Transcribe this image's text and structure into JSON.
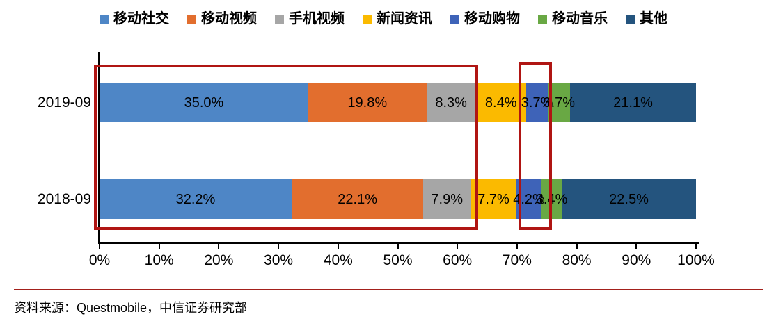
{
  "legend": {
    "items": [
      {
        "label": "移动社交",
        "color": "#4E86C6"
      },
      {
        "label": "移动视频",
        "color": "#E26E2E"
      },
      {
        "label": "手机视频",
        "color": "#A6A6A6"
      },
      {
        "label": "新闻资讯",
        "color": "#FBBA00"
      },
      {
        "label": "移动购物",
        "color": "#3E63B8"
      },
      {
        "label": "移动音乐",
        "color": "#69A844"
      },
      {
        "label": "其他",
        "color": "#24547E"
      }
    ]
  },
  "chart_data": {
    "type": "bar",
    "orientation": "horizontal",
    "stacked": true,
    "unit": "%",
    "categories": [
      "2019-09",
      "2018-09"
    ],
    "series": [
      {
        "name": "移动社交",
        "color": "#4E86C6",
        "values": [
          35.0,
          32.2
        ],
        "labels": [
          "35.0%",
          "32.2%"
        ]
      },
      {
        "name": "移动视频",
        "color": "#E26E2E",
        "values": [
          19.8,
          22.1
        ],
        "labels": [
          "19.8%",
          "22.1%"
        ]
      },
      {
        "name": "手机视频",
        "color": "#A6A6A6",
        "values": [
          8.3,
          7.9
        ],
        "labels": [
          "8.3%",
          "7.9%"
        ]
      },
      {
        "name": "新闻资讯",
        "color": "#FBBA00",
        "values": [
          8.4,
          7.7
        ],
        "labels": [
          "8.4%",
          "7.7%"
        ]
      },
      {
        "name": "移动购物",
        "color": "#3E63B8",
        "values": [
          3.7,
          4.2
        ],
        "labels": [
          "3.7%",
          "4.2%"
        ]
      },
      {
        "name": "移动音乐",
        "color": "#69A844",
        "values": [
          3.7,
          3.4
        ],
        "labels": [
          "3.7%",
          "3.4%"
        ]
      },
      {
        "name": "其他",
        "color": "#24547E",
        "values": [
          21.1,
          22.5
        ],
        "labels": [
          "21.1%",
          "22.5%"
        ]
      }
    ],
    "x_ticks": [
      "0%",
      "10%",
      "20%",
      "30%",
      "40%",
      "50%",
      "60%",
      "70%",
      "80%",
      "90%",
      "100%"
    ],
    "xlim": [
      0,
      100
    ],
    "legend_position": "top",
    "grid": false,
    "data_label_color": "#000000"
  },
  "annotations": {
    "highlight_color": "#B01513",
    "boxes": [
      {
        "name": "highlight-box-left-segments",
        "x_from_pct": -0.93,
        "x_to_pct": 63.5
      },
      {
        "name": "highlight-box-mobile-shopping",
        "x_from_pct": 70.2,
        "x_to_pct": 75.8
      }
    ]
  },
  "footer": {
    "source": "资料来源：Questmobile，中信证券研究部",
    "divider_color": "#A3201B"
  }
}
